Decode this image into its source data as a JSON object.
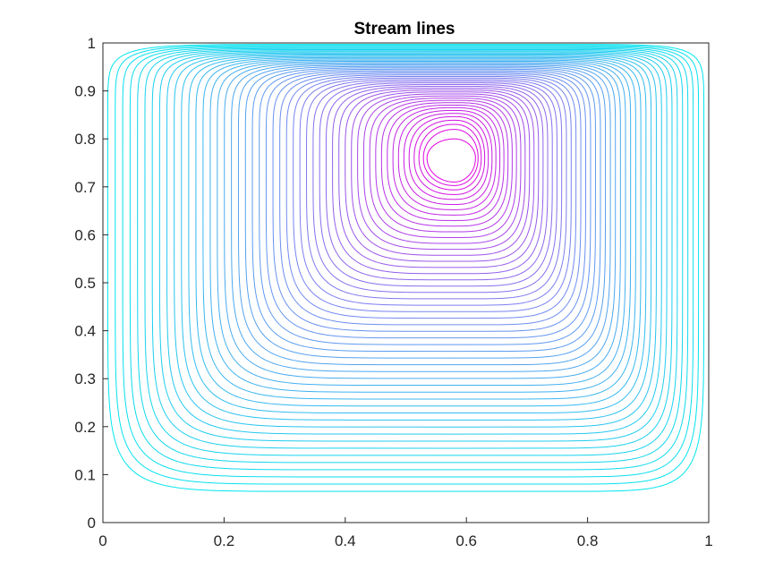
{
  "chart_data": {
    "type": "contour",
    "title": "Stream lines",
    "xlabel": "",
    "ylabel": "",
    "xlim": [
      0,
      1
    ],
    "ylim": [
      0,
      1
    ],
    "x_ticks": [
      "0",
      "0.2",
      "0.4",
      "0.6",
      "0.8",
      "1"
    ],
    "y_ticks": [
      "0",
      "0.1",
      "0.2",
      "0.3",
      "0.4",
      "0.5",
      "0.6",
      "0.7",
      "0.8",
      "0.9",
      "1"
    ],
    "grid": false,
    "legend": false,
    "vortex_center": {
      "x": 0.58,
      "y": 0.76
    },
    "outer_level_min_y": 0.065,
    "contour_level_count": 50,
    "colormap": {
      "outer": "#00e5ee",
      "mid": "#6f8cf0",
      "inner": "#e000e0"
    }
  }
}
